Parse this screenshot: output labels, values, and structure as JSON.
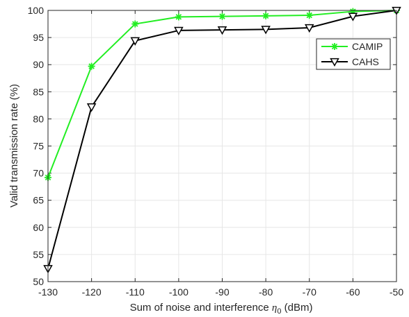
{
  "chart_data": {
    "type": "line",
    "title": "",
    "xlabel_prefix": "Sum of noise and interference ",
    "xlabel_symbol": "η",
    "xlabel_subscript": "0",
    "xlabel_suffix": " (dBm)",
    "ylabel": "Valid transmission rate (%)",
    "xlim": [
      -130,
      -50
    ],
    "ylim": [
      50,
      100
    ],
    "grid": true,
    "legend_position": "top-right",
    "x": [
      -130,
      -120,
      -110,
      -100,
      -90,
      -80,
      -70,
      -60,
      -50
    ],
    "xticks": [
      "-130",
      "-120",
      "-110",
      "-100",
      "-90",
      "-80",
      "-70",
      "-60",
      "-50"
    ],
    "yticks": [
      "50",
      "55",
      "60",
      "65",
      "70",
      "75",
      "80",
      "85",
      "90",
      "95",
      "100"
    ],
    "series": [
      {
        "name": "CAMIP",
        "color": "#22ee22",
        "marker": "asterisk",
        "values": [
          69.2,
          89.7,
          97.5,
          98.8,
          98.9,
          99.0,
          99.1,
          99.8,
          100.0
        ]
      },
      {
        "name": "CAHS",
        "color": "#000000",
        "marker": "down-triangle",
        "values": [
          52.4,
          82.2,
          94.4,
          96.3,
          96.4,
          96.5,
          96.8,
          98.9,
          100.0
        ]
      }
    ]
  }
}
